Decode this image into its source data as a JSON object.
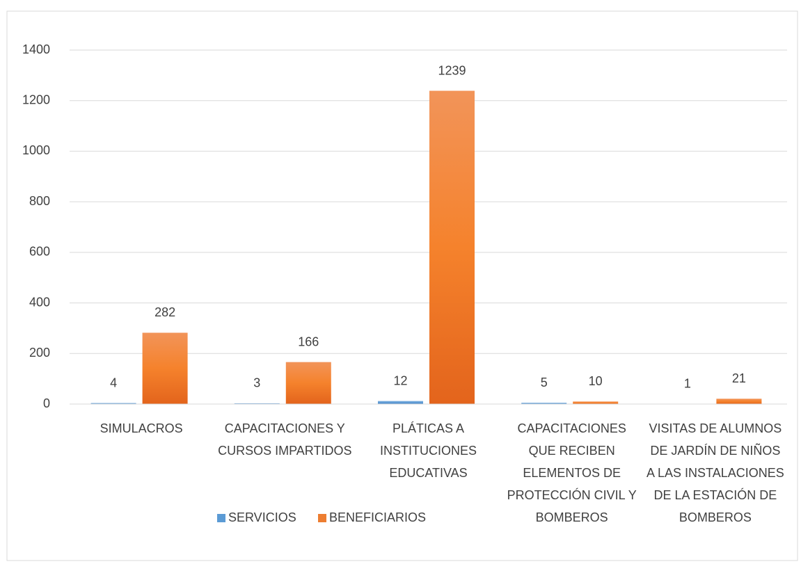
{
  "chart_data": {
    "type": "bar",
    "categories": [
      "SIMULACROS",
      "CAPACITACIONES Y CURSOS IMPARTIDOS",
      "PLÁTICAS A INSTITUCIONES EDUCATIVAS",
      "CAPACITACIONES QUE RECIBEN ELEMENTOS DE PROTECCIÓN CIVIL Y BOMBEROS",
      "VISITAS DE ALUMNOS DE JARDÍN DE NIÑOS A LAS INSTALACIONES DE LA ESTACIÓN DE BOMBEROS"
    ],
    "series": [
      {
        "name": "SERVICIOS",
        "color": "#5b9bd5",
        "values": [
          4,
          3,
          12,
          5,
          1
        ]
      },
      {
        "name": "BENEFICIARIOS",
        "color": "#ed7d31",
        "values": [
          282,
          166,
          1239,
          10,
          21
        ]
      }
    ],
    "ylim": [
      0,
      1400
    ],
    "yticks": [
      0,
      200,
      400,
      600,
      800,
      1000,
      1200,
      1400
    ],
    "grid": true,
    "legend": "bottom"
  }
}
